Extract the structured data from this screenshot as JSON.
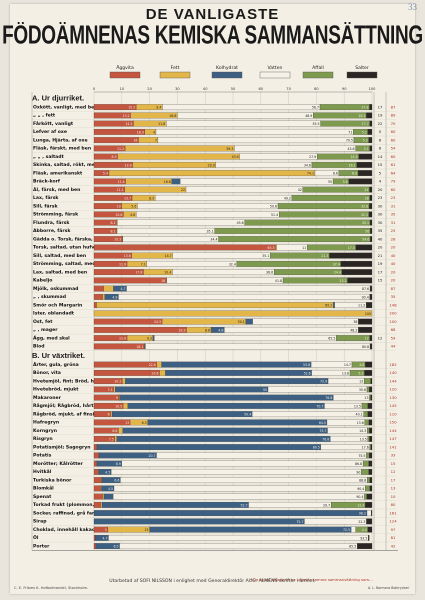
{
  "page": {
    "corner_mark": "33",
    "title_line1": "DE VANLIGASTE",
    "title_line2": "FÖDOÄMNENAS KEMISKA SAMMANSÄTTNING",
    "footer": "Utarbetad af SOFI NILSSON i enlighet med Generaldirektör AUG. ALMÉNS skrifter i ämnet.",
    "footer_left": "C. E. Fritzes K. Hofbokhandel, Stockholm.",
    "footer_right": "* De ätliga afdelarna ha ungefär samma sammansättning som...",
    "footer_far": "A. L. Normans Boktryckeri"
  },
  "colors": {
    "aggvita": "#c4553e",
    "fett": "#e3b64a",
    "kolhydrat": "#3c5f82",
    "vatten": "#f5f1e6",
    "affall": "#7d9a4e",
    "salter": "#2a2623"
  },
  "chart_data": {
    "type": "bar",
    "stacked": true,
    "xlim": [
      0,
      100
    ],
    "x_ticks": [
      0,
      10,
      20,
      30,
      40,
      50,
      60,
      70,
      80,
      90,
      100
    ],
    "legend_position": "top",
    "legend": [
      "Äggvita",
      "Fett",
      "Kolhydrat",
      "Vatten",
      "Affall",
      "Salter"
    ],
    "series_order": [
      "aggvita",
      "fett",
      "kolhydrat",
      "vatten",
      "affall",
      "salter"
    ],
    "sections": [
      {
        "label": "A. Ur djurriket.",
        "rows": [
          {
            "name": "Oxkött, vanligt, med ben",
            "values": [
              15.2,
              9.4,
              0,
              56.7,
              17.8,
              0.9
            ],
            "annot": "17",
            "kcal": "87"
          },
          {
            "name": "„ „ , fett",
            "values": [
              13.2,
              16.8,
              0,
              48.9,
              19.1,
              2.0
            ],
            "annot": "19",
            "kcal": "89"
          },
          {
            "name": "Fårkött, vanligt",
            "values": [
              14.2,
              11.8,
              0,
              55.5,
              17.7,
              0.8
            ],
            "annot": "22",
            "kcal": "70"
          },
          {
            "name": "Lefver af oxe",
            "values": [
              18.3,
              4.0,
              0,
              71.0,
              5.2,
              1.5
            ],
            "annot": "5",
            "kcal": "60"
          },
          {
            "name": "Lunga, Hjärta, af oxe",
            "values": [
              16.0,
              7.0,
              0,
              70.5,
              5.3,
              1.2
            ],
            "annot": "6",
            "kcal": "60"
          },
          {
            "name": "Fläsk, färskt, med ben",
            "values": [
              11.2,
              39.3,
              0,
              43.6,
              5.1,
              0.8
            ],
            "annot": "6",
            "kcal": "54"
          },
          {
            "name": "„ „ , saltadt",
            "values": [
              8.5,
              43.9,
              0,
              27.9,
              14.9,
              4.8
            ],
            "annot": "14",
            "kcal": "60"
          },
          {
            "name": "Skinka, saltad, rökt, med ben",
            "values": [
              13.9,
              29.9,
              0,
              34.6,
              16.1,
              5.5
            ],
            "annot": "15",
            "kcal": "61"
          },
          {
            "name": "Fläsk, amerikanskt",
            "values": [
              5.4,
              74.1,
              0,
              8.6,
              6.9,
              5.0
            ],
            "annot": "5",
            "kcal": "64"
          },
          {
            "name": "Bräck-korf",
            "values": [
              11.4,
              16.6,
              3.0,
              55.0,
              5.6,
              8.4
            ],
            "annot": "4",
            "kcal": "79"
          },
          {
            "name": "Ål, färsk, med ben",
            "values": [
              11.1,
              22.0,
              0,
              42.0,
              24.0,
              0.9
            ],
            "annot": "20",
            "kcal": "60"
          },
          {
            "name": "Lax, färsk",
            "values": [
              13.7,
              8.3,
              0,
              49.2,
              28.0,
              0.8
            ],
            "annot": "23",
            "kcal": "23"
          },
          {
            "name": "Sill, färsk",
            "values": [
              10.0,
              5.6,
              0,
              50.6,
              32.8,
              1.0
            ],
            "annot": "30",
            "kcal": "31"
          },
          {
            "name": "Strömming, färsk",
            "values": [
              10.6,
              4.6,
              0,
              51.4,
              32.3,
              1.1
            ],
            "annot": "30",
            "kcal": "35"
          },
          {
            "name": "Flundra, färsk",
            "values": [
              8.1,
              0.3,
              0,
              45.8,
              45.1,
              0.7
            ],
            "annot": "30",
            "kcal": "31"
          },
          {
            "name": "Abborre, färsk",
            "values": [
              8.1,
              0.2,
              0,
              35.1,
              56.0,
              0.6
            ],
            "annot": "35",
            "kcal": "25"
          },
          {
            "name": "Gädda o. Torsk, färska, med ben",
            "values": [
              10.2,
              0.2,
              0,
              34.4,
              54.6,
              0.6
            ],
            "annot": "40",
            "kcal": "28"
          },
          {
            "name": "Torsk, saltad, utan hufvud",
            "values": [
              65.3,
              0.4,
              0,
              11.0,
              17.5,
              5.8
            ],
            "annot": "20",
            "kcal": "20"
          },
          {
            "name": "Sill, saltad, med ben",
            "values": [
              13.6,
              14.7,
              0,
              35.1,
              21.3,
              15.3
            ],
            "annot": "21",
            "kcal": "40"
          },
          {
            "name": "Strömming, saltad, med ben",
            "values": [
              11.9,
              7.1,
              0,
              32.4,
              37.4,
              11.2
            ],
            "annot": "19",
            "kcal": "40"
          },
          {
            "name": "Lax, saltad, med ben",
            "values": [
              17.8,
              10.4,
              0,
              36.6,
              24.4,
              10.8
            ],
            "annot": "17",
            "kcal": "20"
          },
          {
            "name": "Kabeljo",
            "values": [
              26.0,
              0.2,
              0,
              41.8,
              23.2,
              8.8
            ],
            "annot": "15",
            "kcal": "20"
          },
          {
            "name": "Mjölk, oskummad",
            "values": [
              3.5,
              3.5,
              4.7,
              87.6,
              0,
              0.7
            ],
            "annot": "",
            "kcal": "87"
          },
          {
            "name": "„ , skummad",
            "values": [
              3.1,
              0.8,
              4.9,
              90.4,
              0,
              0.8
            ],
            "annot": "",
            "kcal": "35"
          },
          {
            "name": "Smör och Margarin",
            "values": [
              0.9,
              85.2,
              0.5,
              11.3,
              0,
              2.1
            ],
            "annot": "",
            "kcal": "148"
          },
          {
            "name": "Ister, oblandadt",
            "values": [
              0,
              100,
              0,
              0,
              0,
              0
            ],
            "annot": "",
            "kcal": "200"
          },
          {
            "name": "Ost, fet",
            "values": [
              24.5,
              30.1,
              2.5,
              38.0,
              0,
              4.9
            ],
            "annot": "",
            "kcal": "100"
          },
          {
            "name": "„ , mager",
            "values": [
              33.3,
              8.8,
              4.8,
              48.2,
              0,
              4.9
            ],
            "annot": "",
            "kcal": "68"
          },
          {
            "name": "Ägg, med skal",
            "values": [
              11.9,
              9.3,
              0.5,
              65.5,
              12.0,
              0.8
            ],
            "annot": "12",
            "kcal": "59"
          },
          {
            "name": "Blod",
            "values": [
              18.1,
              0.2,
              0.2,
              80.8,
              0,
              0.7
            ],
            "annot": "",
            "kcal": "44"
          }
        ]
      },
      {
        "label": "B. Ur växtriket.",
        "rows": [
          {
            "name": "Ärter, gula, gröna",
            "values": [
              22.6,
              1.7,
              53.8,
              14.7,
              4.8,
              2.4
            ],
            "annot": "",
            "kcal": "182"
          },
          {
            "name": "Bönor, vita",
            "values": [
              23.6,
              2.1,
              52.6,
              13.8,
              5.2,
              2.7
            ],
            "annot": "",
            "kcal": "140"
          },
          {
            "name": "Hvetemjöl, fint; Bröd, hårdt",
            "values": [
              10.2,
              1.1,
              72.9,
              13.0,
              2.3,
              0.5
            ],
            "annot": "",
            "kcal": "144"
          },
          {
            "name": "Hvetebröd, mjukt",
            "values": [
              7.1,
              0.5,
              55.0,
              35.6,
              0.8,
              1.0
            ],
            "annot": "",
            "kcal": "120"
          },
          {
            "name": "Makaroner",
            "values": [
              9.0,
              0.3,
              76.8,
              13.0,
              0.4,
              0.5
            ],
            "annot": "",
            "kcal": "130"
          },
          {
            "name": "Rågmjöl; Rågbröd, hårt, grofsiktadt",
            "values": [
              10.5,
              1.7,
              70.7,
              13.5,
              2.1,
              1.5
            ],
            "annot": "",
            "kcal": "145"
          },
          {
            "name": "Rågbröd, mjukt, af finsiktadt mjöl",
            "values": [
              6.0,
              0.5,
              50.4,
              40.1,
              1.5,
              1.5
            ],
            "annot": "",
            "kcal": "110"
          },
          {
            "name": "Hafregryn",
            "values": [
              13.0,
              6.3,
              64.5,
              13.6,
              1.5,
              1.1
            ],
            "annot": "",
            "kcal": "150"
          },
          {
            "name": "Korngryn",
            "values": [
              8.8,
              1.5,
              73.7,
              14.3,
              0.7,
              1.0
            ],
            "annot": "",
            "kcal": "144"
          },
          {
            "name": "Risgryn",
            "values": [
              7.5,
              0.7,
              76.8,
              13.5,
              0.6,
              0.9
            ],
            "annot": "",
            "kcal": "147"
          },
          {
            "name": "Potatismjöl; Sagogryn",
            "values": [
              1.0,
              0.1,
              80.5,
              17.6,
              0.4,
              0.4
            ],
            "annot": "",
            "kcal": "141"
          },
          {
            "name": "Potatis",
            "values": [
              1.7,
              0.1,
              20.7,
              75.5,
              1.0,
              1.0
            ],
            "annot": "",
            "kcal": "33"
          },
          {
            "name": "Morötter; Kålrötter",
            "values": [
              1.0,
              0.1,
              8.9,
              86.8,
              2.0,
              1.2
            ],
            "annot": "",
            "kcal": "15"
          },
          {
            "name": "Hvitkål",
            "values": [
              1.5,
              0.2,
              4.5,
              90.0,
              2.6,
              1.2
            ],
            "annot": "",
            "kcal": "12"
          },
          {
            "name": "Turkiska bönor",
            "values": [
              2.7,
              0.2,
              6.6,
              88.8,
              0.9,
              0.8
            ],
            "annot": "",
            "kcal": "17"
          },
          {
            "name": "Blomkål",
            "values": [
              2.4,
              0.3,
              4.5,
              90.4,
              1.6,
              0.8
            ],
            "annot": "",
            "kcal": "13"
          },
          {
            "name": "Spenat",
            "values": [
              3.1,
              0.5,
              3.3,
              90.4,
              0.8,
              1.9
            ],
            "annot": "",
            "kcal": "10"
          },
          {
            "name": "Torkad frukt (plommon, russin)",
            "values": [
              2.4,
              0.5,
              52.7,
              29.7,
              12.3,
              2.4
            ],
            "annot": "",
            "kcal": "80"
          },
          {
            "name": "Socker, raffinad, grå farin",
            "values": [
              0,
              0,
              98.2,
              1.5,
              0,
              0.3
            ],
            "annot": "",
            "kcal": "161"
          },
          {
            "name": "Sirap",
            "values": [
              0,
              0,
              75.7,
              22.3,
              0,
              2.0
            ],
            "annot": "",
            "kcal": "124"
          },
          {
            "name": "Choklad, innehåll kakaopulver",
            "values": [
              5.0,
              15.0,
              72.5,
              1.6,
              4.4,
              1.5
            ],
            "annot": "",
            "kcal": "97"
          },
          {
            "name": "Öl",
            "values": [
              0.5,
              0,
              4.7,
              93.5,
              0,
              0.3
            ],
            "annot": "",
            "kcal": "81"
          },
          {
            "name": "Porter",
            "values": [
              0.7,
              0,
              8.5,
              85.5,
              0,
              5.3
            ],
            "annot": "",
            "kcal": "42"
          }
        ]
      }
    ]
  }
}
